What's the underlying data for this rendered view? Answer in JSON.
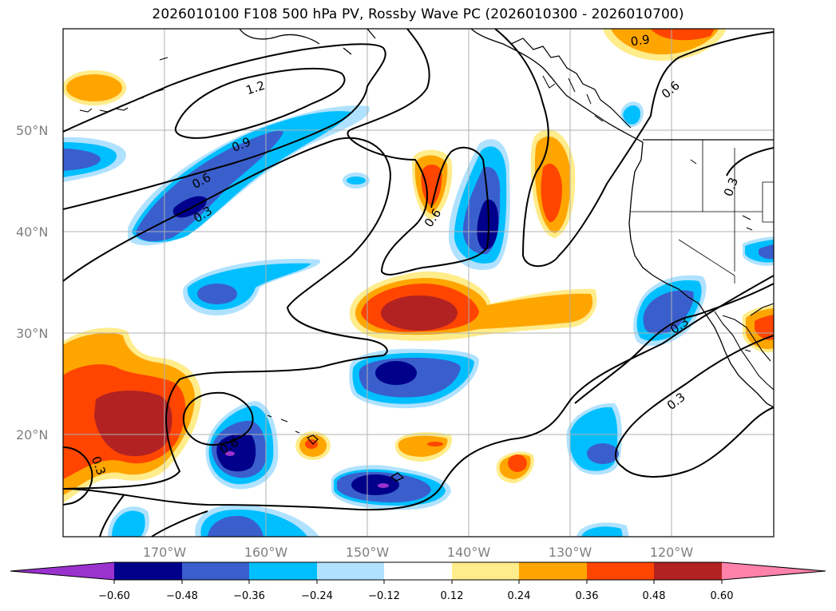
{
  "figure": {
    "title": "2026010100 F108 500 hPa PV, Rossby Wave PC (2026010300 - 2026010700)"
  },
  "map": {
    "lat_labels": [
      "50°N",
      "40°N",
      "30°N",
      "20°N"
    ],
    "lon_labels": [
      "170°W",
      "160°W",
      "150°W",
      "140°W",
      "130°W",
      "120°W"
    ],
    "contour_labels": [
      "1.2",
      "0.9",
      "0.9",
      "0.6",
      "0.6",
      "0.6",
      "0.3",
      "0.3",
      "0.3",
      "0.6",
      "0.3",
      "0.3"
    ]
  },
  "colorbar": {
    "ticks": [
      "−0.60",
      "−0.48",
      "−0.36",
      "−0.24",
      "−0.12",
      "0.12",
      "0.24",
      "0.36",
      "0.48",
      "0.60"
    ],
    "colors": [
      "#9a32cd",
      "#00008b",
      "#3a5fcd",
      "#00bfff",
      "#b0e2ff",
      "#ffffff",
      "#ffec8b",
      "#ffa500",
      "#ff4500",
      "#b22222",
      "#ff82ab"
    ]
  },
  "chart_data": {
    "type": "map-contour",
    "title": "2026010100 F108 500 hPa PV, Rossby Wave PC (2026010300 - 2026010700)",
    "filled_variable": "Rossby Wave PC (shaded)",
    "contour_variable": "500 hPa PV (black contours)",
    "contour_levels": [
      0.3,
      0.6,
      0.9,
      1.2
    ],
    "color_levels": [
      -0.6,
      -0.48,
      -0.36,
      -0.24,
      -0.12,
      0.12,
      0.24,
      0.36,
      0.48,
      0.6
    ],
    "lon_range": [
      -180,
      -110
    ],
    "lat_range": [
      10,
      60
    ]
  }
}
